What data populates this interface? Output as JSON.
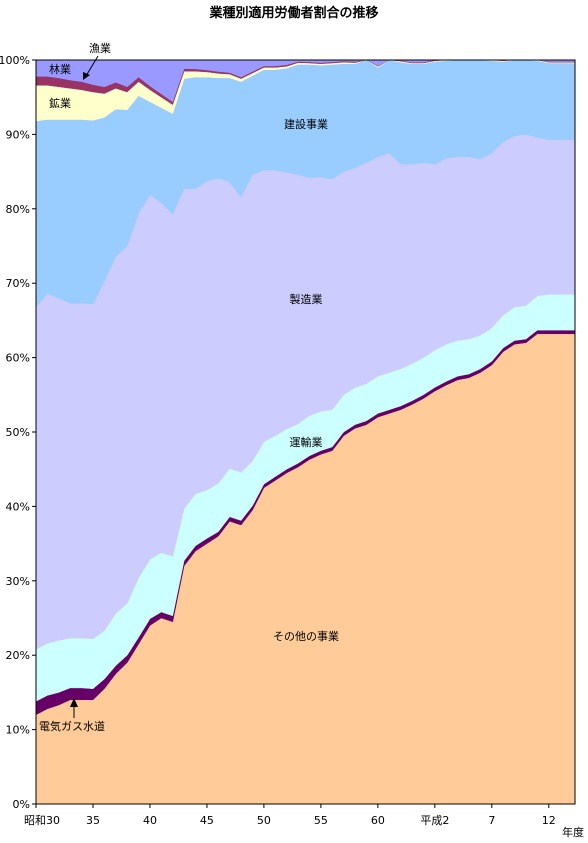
{
  "chart_data": {
    "type": "area",
    "stacked": true,
    "percent": true,
    "title": "業種別適用労働者割合の推移",
    "xlabel": "年度",
    "ylim": [
      0,
      100
    ],
    "y_ticks": [
      "0%",
      "10%",
      "20%",
      "30%",
      "40%",
      "50%",
      "60%",
      "70%",
      "80%",
      "90%",
      "100%"
    ],
    "x_ticks": [
      "昭和30",
      "35",
      "40",
      "45",
      "50",
      "55",
      "60",
      "平成2",
      "7",
      "12"
    ],
    "x": [
      30,
      31,
      32,
      33,
      34,
      35,
      36,
      37,
      38,
      39,
      40,
      41,
      42,
      43,
      44,
      45,
      46,
      47,
      48,
      49,
      50,
      51,
      52,
      53,
      54,
      55,
      56,
      57,
      58,
      59,
      60,
      61,
      62,
      63,
      64,
      65,
      66,
      67,
      68,
      69,
      70,
      71,
      72,
      73,
      74,
      75,
      76,
      77
    ],
    "series": [
      {
        "name": "その他の事業",
        "color": "#FFCC99",
        "values": [
          12,
          12.8,
          13.3,
          14,
          14,
          14,
          15.5,
          17.5,
          19,
          21.5,
          24,
          25,
          24.5,
          32,
          34,
          35,
          36,
          38,
          37.5,
          39.5,
          42.5,
          43.5,
          44.5,
          45.3,
          46.3,
          47,
          47.5,
          49.5,
          50.5,
          51,
          52,
          52.5,
          53,
          53.7,
          54.5,
          55.5,
          56.3,
          57,
          57.3,
          58,
          59,
          60.8,
          61.8,
          62,
          63.2,
          63.2,
          63.2,
          63.2
        ]
      },
      {
        "name": "電気ガス水道",
        "color": "#660066",
        "values": [
          1.8,
          1.8,
          1.7,
          1.6,
          1.6,
          1.5,
          1.3,
          1.1,
          1.0,
          0.9,
          0.9,
          0.8,
          0.8,
          0.7,
          0.7,
          0.7,
          0.6,
          0.6,
          0.6,
          0.6,
          0.5,
          0.5,
          0.5,
          0.5,
          0.5,
          0.5,
          0.5,
          0.5,
          0.5,
          0.5,
          0.5,
          0.5,
          0.5,
          0.5,
          0.5,
          0.5,
          0.5,
          0.5,
          0.5,
          0.5,
          0.5,
          0.5,
          0.5,
          0.5,
          0.5,
          0.5,
          0.5,
          0.5
        ]
      },
      {
        "name": "運輸業",
        "color": "#CCFFFF",
        "values": [
          7,
          7,
          7,
          6.7,
          6.7,
          6.7,
          6.5,
          7,
          7,
          8,
          8,
          8,
          8,
          7,
          7,
          6.5,
          6.5,
          6.5,
          6.5,
          6,
          5.7,
          5.5,
          5.4,
          5.3,
          5.4,
          5.3,
          5,
          5,
          5,
          5,
          5,
          5,
          5,
          5,
          5,
          5,
          5,
          4.8,
          4.7,
          4.5,
          4.5,
          4.4,
          4.5,
          4.5,
          4.6,
          4.8,
          4.8,
          4.8
        ]
      },
      {
        "name": "製造業",
        "color": "#CCCCFF",
        "values": [
          46,
          47,
          46,
          45,
          45,
          45,
          47,
          48,
          48,
          49,
          49,
          47,
          46,
          43,
          41,
          41.5,
          41,
          38.5,
          37,
          38.5,
          36.5,
          35.7,
          34.5,
          33.5,
          32,
          31.5,
          31,
          30,
          29.5,
          29.7,
          29.5,
          29.5,
          27.5,
          26.8,
          26.2,
          25,
          25,
          24.7,
          24.5,
          23.7,
          23.5,
          23.3,
          23,
          23,
          21.3,
          20.8,
          20.8,
          20.8
        ]
      },
      {
        "name": "建設事業",
        "color": "#99CCFF",
        "values": [
          25,
          23.4,
          24,
          24.7,
          24.7,
          24.7,
          22,
          19.8,
          18.3,
          15.8,
          12.5,
          12.8,
          13.5,
          14.8,
          15,
          14,
          13.5,
          14,
          15.5,
          13.3,
          13.5,
          13.5,
          14,
          14.8,
          15.2,
          15,
          15.4,
          14.5,
          14,
          14.3,
          12,
          13.4,
          13.7,
          13.5,
          13.3,
          13.8,
          13.1,
          13,
          13.1,
          13.5,
          12.4,
          10.8,
          10.7,
          10.5,
          10.3,
          10.3,
          10.3,
          10.3
        ]
      },
      {
        "name": "鉱業",
        "color": "#FFFFCC",
        "values": [
          4.8,
          4.6,
          4.4,
          4.2,
          4.0,
          3.8,
          3.2,
          2.8,
          2.4,
          1.9,
          1.6,
          1.4,
          1.2,
          1.0,
          0.8,
          0.7,
          0.6,
          0.5,
          0.4,
          0.35,
          0.3,
          0.3,
          0.25,
          0.25,
          0.2,
          0.2,
          0.2,
          0.2,
          0.15,
          0.15,
          0.15,
          0.15,
          0.15,
          0.1,
          0.1,
          0.1,
          0.1,
          0.1,
          0.1,
          0.1,
          0.1,
          0.1,
          0.1,
          0.1,
          0.1,
          0.1,
          0.1,
          0.1
        ]
      },
      {
        "name": "林業",
        "color": "#993366",
        "values": [
          1.2,
          1.2,
          1.2,
          1.1,
          1.1,
          1.0,
          0.9,
          0.8,
          0.7,
          0.6,
          0.5,
          0.45,
          0.4,
          0.35,
          0.3,
          0.25,
          0.25,
          0.2,
          0.2,
          0.2,
          0.2,
          0.2,
          0.2,
          0.15,
          0.15,
          0.15,
          0.15,
          0.15,
          0.15,
          0.1,
          0.1,
          0.1,
          0.1,
          0.1,
          0.1,
          0.1,
          0.1,
          0.1,
          0.1,
          0.1,
          0.1,
          0.1,
          0.1,
          0.1,
          0.1,
          0.1,
          0.1,
          0.1
        ]
      },
      {
        "name": "漁業",
        "color": "#9999FF",
        "values": [
          2.2,
          2.2,
          2.4,
          2.7,
          2.9,
          3.3,
          3.9,
          3.0,
          3.6,
          2.7,
          3.0,
          3.1,
          3.0,
          2.9,
          2.6,
          2.8,
          2.5,
          2.2,
          2.3,
          2.1,
          2.3,
          2.1,
          2.6,
          2.2,
          2.0,
          2.1,
          2.4,
          2.0,
          2.3,
          2.0,
          2.5,
          1.3,
          2.4,
          2.9,
          2.3,
          1.9,
          2.5,
          2.8,
          2.8,
          2.1,
          2.9,
          2.5,
          2.2,
          2.0,
          2.0,
          1.9,
          1.9,
          1.9
        ]
      }
    ],
    "annotations": [
      "漁業",
      "林業",
      "鉱業",
      "建設事業",
      "製造業",
      "運輸業",
      "その他の事業",
      "電気ガス水道"
    ]
  }
}
